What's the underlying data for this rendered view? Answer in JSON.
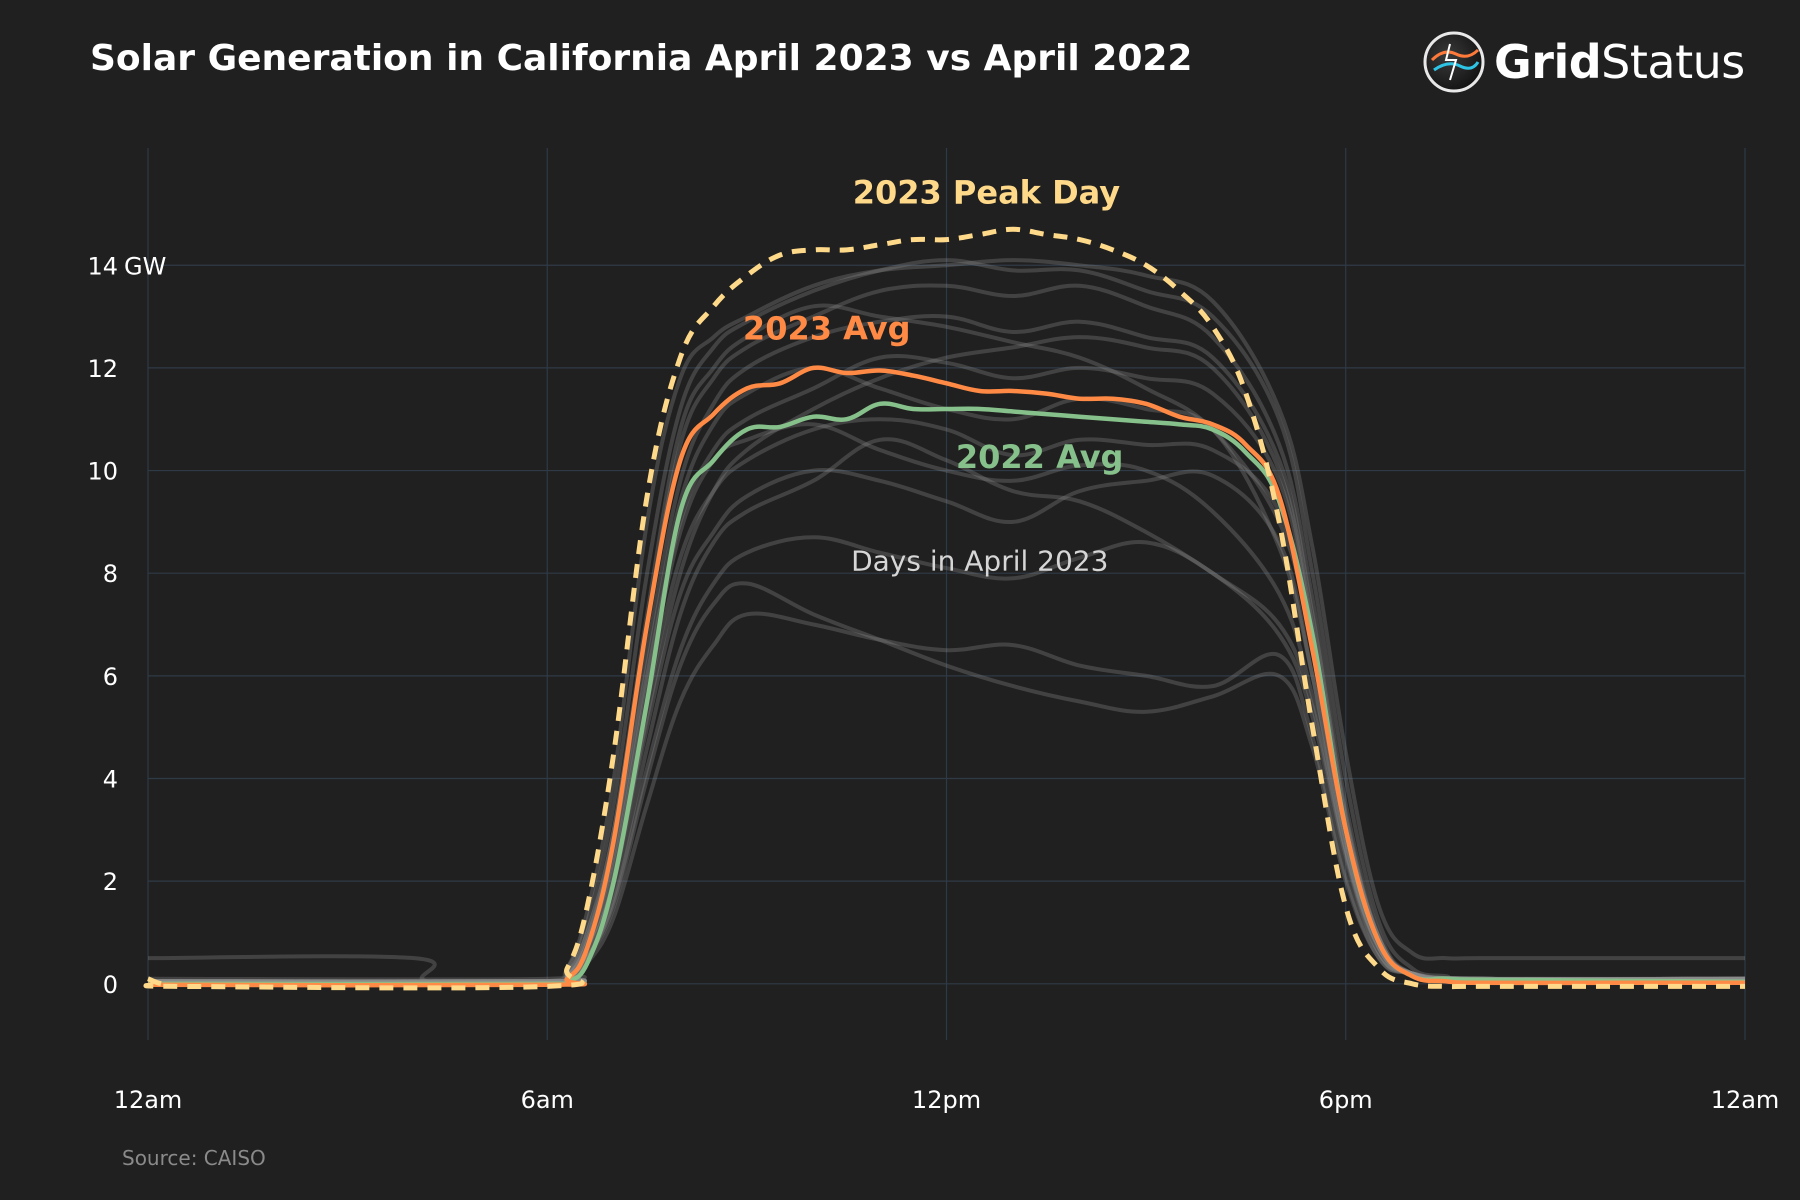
{
  "title": "Solar Generation in California April 2023 vs April 2022",
  "brand": {
    "name_bold": "Grid",
    "name_regular": "Status"
  },
  "source": "Source: CAISO",
  "colors": {
    "background": "#202020",
    "grid": "#2f3a47",
    "days": "#8c8c8c",
    "avg_2023": "#ff8a45",
    "avg_2022": "#86c08a",
    "peak_2023": "#ffd98a",
    "axis_text": "#ffffff"
  },
  "chart_data": {
    "type": "line",
    "title": "Solar Generation in California April 2023 vs April 2022",
    "xlabel": "",
    "ylabel": "GW",
    "x_unit": "hours since midnight",
    "xlim": [
      0,
      24
    ],
    "ylim": [
      -0.9,
      15.7
    ],
    "x_ticks": [
      {
        "value": 0,
        "label": "12am"
      },
      {
        "value": 6,
        "label": "6am"
      },
      {
        "value": 12,
        "label": "12pm"
      },
      {
        "value": 18,
        "label": "6pm"
      },
      {
        "value": 24,
        "label": "12am"
      }
    ],
    "y_ticks": [
      {
        "value": 0,
        "label": "0"
      },
      {
        "value": 2,
        "label": "2"
      },
      {
        "value": 4,
        "label": "4"
      },
      {
        "value": 6,
        "label": "6"
      },
      {
        "value": 8,
        "label": "8"
      },
      {
        "value": 10,
        "label": "10"
      },
      {
        "value": 12,
        "label": "12"
      },
      {
        "value": 14,
        "label": "14"
      }
    ],
    "y_unit_label": "GW",
    "grid": true,
    "series": [
      {
        "name": "2023 Peak Day",
        "style": "dashed",
        "x": [
          0,
          0.2,
          0.5,
          6.0,
          6.3,
          6.6,
          7.0,
          7.5,
          8.0,
          8.5,
          9.0,
          9.5,
          10.0,
          10.5,
          11.0,
          11.5,
          12.0,
          12.5,
          13.0,
          13.5,
          14.0,
          14.5,
          15.0,
          15.5,
          16.0,
          16.5,
          17.0,
          17.5,
          18.0,
          18.5,
          19.0,
          19.5,
          20.0,
          22.0,
          24.0
        ],
        "y": [
          0.1,
          0.0,
          -0.05,
          -0.05,
          0.3,
          1.5,
          4.5,
          9.5,
          12.2,
          13.2,
          13.8,
          14.2,
          14.3,
          14.3,
          14.4,
          14.5,
          14.5,
          14.6,
          14.7,
          14.6,
          14.5,
          14.3,
          14.0,
          13.5,
          12.8,
          11.5,
          9.0,
          5.0,
          1.5,
          0.3,
          0.0,
          -0.05,
          -0.05,
          -0.05,
          -0.05
        ]
      },
      {
        "name": "2023 Avg",
        "style": "solid",
        "x": [
          0,
          6.0,
          6.3,
          6.6,
          7.0,
          7.5,
          8.0,
          8.5,
          9.0,
          9.5,
          10.0,
          10.5,
          11.0,
          11.5,
          12.0,
          12.5,
          13.0,
          13.5,
          14.0,
          14.5,
          15.0,
          15.5,
          16.0,
          16.5,
          17.0,
          17.5,
          18.0,
          18.5,
          19.0,
          19.5,
          20.0,
          22.0,
          24.0
        ],
        "y": [
          -0.02,
          -0.02,
          0.1,
          0.7,
          2.8,
          7.0,
          10.2,
          11.1,
          11.6,
          11.7,
          12.0,
          11.9,
          11.95,
          11.85,
          11.7,
          11.55,
          11.55,
          11.5,
          11.4,
          11.4,
          11.3,
          11.05,
          10.9,
          10.5,
          9.5,
          6.5,
          3.0,
          0.8,
          0.15,
          0.05,
          0.02,
          0.02,
          0.02
        ]
      },
      {
        "name": "2022 Avg",
        "style": "solid",
        "x": [
          0,
          6.0,
          6.3,
          6.6,
          7.0,
          7.5,
          8.0,
          8.5,
          9.0,
          9.5,
          10.0,
          10.5,
          11.0,
          11.5,
          12.0,
          12.5,
          13.0,
          13.5,
          14.0,
          14.5,
          15.0,
          15.5,
          16.0,
          16.5,
          17.0,
          17.5,
          18.0,
          18.5,
          19.0,
          19.5,
          20.0,
          22.0,
          24.0
        ],
        "y": [
          0.0,
          0.0,
          0.05,
          0.4,
          2.0,
          5.5,
          9.2,
          10.2,
          10.8,
          10.85,
          11.05,
          11.0,
          11.3,
          11.2,
          11.2,
          11.2,
          11.15,
          11.1,
          11.05,
          11.0,
          10.95,
          10.9,
          10.8,
          10.35,
          9.4,
          6.8,
          3.0,
          0.8,
          0.15,
          0.1,
          0.08,
          0.06,
          0.04
        ]
      }
    ],
    "background_series_name": "Days in April 2023",
    "background_series": [
      {
        "x": [
          0,
          4.0,
          4.2,
          6.0,
          6.3,
          6.6,
          7.0,
          7.5,
          8.0,
          8.5,
          9.0,
          10.0,
          11.0,
          12.0,
          13.0,
          14.0,
          15.0,
          16.0,
          17.0,
          17.5,
          18.0,
          18.5,
          19.0,
          19.5,
          20.0,
          22.0,
          24.0
        ],
        "y": [
          0.5,
          0.5,
          0.05,
          0.05,
          0.3,
          1.4,
          4.0,
          9.0,
          11.8,
          12.6,
          13.0,
          13.6,
          13.9,
          14.0,
          14.1,
          14.0,
          13.8,
          13.3,
          11.2,
          8.5,
          4.5,
          1.5,
          0.6,
          0.5,
          0.5,
          0.5,
          0.5
        ]
      },
      {
        "x": [
          0,
          6.0,
          6.3,
          6.6,
          7.0,
          7.5,
          8.0,
          8.5,
          9.0,
          10.0,
          11.0,
          12.0,
          13.0,
          14.0,
          15.0,
          16.0,
          17.0,
          17.5,
          18.0,
          18.5,
          19.0,
          19.5,
          20.0,
          24.0
        ],
        "y": [
          0.1,
          0.1,
          0.3,
          1.2,
          3.5,
          8.0,
          11.2,
          12.4,
          12.9,
          13.5,
          13.9,
          14.1,
          13.9,
          13.9,
          13.5,
          13.0,
          11.0,
          8.0,
          4.0,
          1.2,
          0.3,
          0.15,
          0.1,
          0.1
        ]
      },
      {
        "x": [
          0,
          6.0,
          6.3,
          6.6,
          7.0,
          7.5,
          8.0,
          8.5,
          9.0,
          10.0,
          11.0,
          12.0,
          13.0,
          14.0,
          15.0,
          16.0,
          17.0,
          17.5,
          18.0,
          18.5,
          19.0,
          20.0,
          24.0
        ],
        "y": [
          0.05,
          0.05,
          0.2,
          1.0,
          3.0,
          7.0,
          10.5,
          11.8,
          12.4,
          13.0,
          13.5,
          13.6,
          13.4,
          13.6,
          13.2,
          12.6,
          10.5,
          7.5,
          3.5,
          1.0,
          0.2,
          0.1,
          0.1
        ]
      },
      {
        "x": [
          0,
          6.0,
          6.3,
          6.6,
          7.0,
          7.5,
          8.0,
          8.5,
          9.0,
          10.0,
          11.0,
          12.0,
          13.0,
          14.0,
          15.0,
          16.0,
          17.0,
          17.5,
          18.0,
          18.5,
          19.0,
          20.0,
          24.0
        ],
        "y": [
          0.05,
          0.05,
          0.2,
          0.9,
          2.8,
          6.5,
          9.8,
          11.3,
          12.0,
          12.6,
          12.9,
          13.0,
          12.7,
          12.9,
          12.6,
          12.2,
          10.2,
          7.2,
          3.3,
          0.9,
          0.2,
          0.1,
          0.1
        ]
      },
      {
        "x": [
          0,
          6.0,
          6.3,
          6.6,
          7.0,
          7.5,
          8.0,
          8.5,
          9.0,
          10.0,
          11.0,
          12.0,
          13.0,
          14.0,
          15.0,
          16.0,
          17.0,
          17.5,
          18.0,
          18.5,
          19.0,
          20.0,
          24.0
        ],
        "y": [
          0.05,
          0.05,
          0.15,
          0.8,
          2.5,
          6.0,
          9.0,
          10.4,
          11.0,
          11.6,
          12.2,
          12.1,
          11.8,
          12.0,
          11.8,
          11.5,
          9.8,
          6.8,
          3.0,
          0.8,
          0.2,
          0.1,
          0.1
        ]
      },
      {
        "x": [
          0,
          6.0,
          6.3,
          6.6,
          7.0,
          7.5,
          8.0,
          8.5,
          9.0,
          10.0,
          11.0,
          12.0,
          13.0,
          14.0,
          15.0,
          16.0,
          17.0,
          17.5,
          18.0,
          18.5,
          19.0,
          20.0,
          24.0
        ],
        "y": [
          0.05,
          0.05,
          0.15,
          0.7,
          2.2,
          5.5,
          8.3,
          9.6,
          10.2,
          10.8,
          11.0,
          10.8,
          10.3,
          10.6,
          10.5,
          10.4,
          9.2,
          6.5,
          2.8,
          0.7,
          0.2,
          0.1,
          0.1
        ]
      },
      {
        "x": [
          0,
          6.0,
          6.3,
          6.6,
          7.0,
          7.5,
          8.0,
          8.5,
          9.0,
          10.0,
          11.0,
          12.0,
          13.0,
          14.0,
          15.0,
          16.0,
          17.0,
          17.5,
          18.0,
          18.5,
          19.0,
          20.0,
          24.0
        ],
        "y": [
          0.05,
          0.05,
          0.1,
          0.6,
          2.0,
          5.0,
          7.6,
          8.8,
          9.5,
          10.0,
          9.8,
          9.4,
          9.0,
          9.6,
          9.8,
          9.9,
          8.6,
          6.0,
          2.6,
          0.7,
          0.2,
          0.1,
          0.1
        ]
      },
      {
        "x": [
          0,
          6.0,
          6.3,
          6.6,
          7.0,
          7.5,
          8.0,
          8.5,
          9.0,
          10.0,
          11.0,
          12.0,
          13.0,
          14.0,
          15.0,
          16.0,
          17.0,
          17.5,
          18.0,
          18.5,
          19.0,
          20.0,
          24.0
        ],
        "y": [
          0.05,
          0.05,
          0.1,
          0.5,
          1.6,
          4.2,
          6.5,
          7.8,
          8.4,
          8.7,
          8.4,
          8.1,
          7.9,
          8.3,
          8.6,
          8.0,
          6.8,
          5.2,
          2.4,
          0.6,
          0.2,
          0.1,
          0.1
        ]
      },
      {
        "x": [
          0,
          6.0,
          6.3,
          6.6,
          7.0,
          7.5,
          8.0,
          8.5,
          9.0,
          10.0,
          11.0,
          12.0,
          13.0,
          14.0,
          15.0,
          16.0,
          17.0,
          17.5,
          18.0,
          18.5,
          19.0,
          20.0,
          24.0
        ],
        "y": [
          0.05,
          0.05,
          0.1,
          0.4,
          1.3,
          3.5,
          5.5,
          6.6,
          7.2,
          7.0,
          6.7,
          6.5,
          6.6,
          6.2,
          6.0,
          5.8,
          6.4,
          4.8,
          2.1,
          0.5,
          0.2,
          0.1,
          0.1
        ]
      },
      {
        "x": [
          0,
          6.0,
          6.3,
          6.6,
          7.0,
          7.5,
          8.0,
          8.5,
          9.0,
          10.0,
          11.0,
          12.0,
          13.0,
          14.0,
          15.0,
          16.0,
          17.0,
          17.5,
          18.0,
          18.5,
          19.0,
          20.0,
          24.0
        ],
        "y": [
          0.05,
          0.05,
          0.1,
          0.5,
          1.5,
          4.0,
          6.2,
          7.4,
          7.8,
          7.2,
          6.7,
          6.2,
          5.8,
          5.5,
          5.3,
          5.6,
          6.0,
          4.6,
          2.0,
          0.5,
          0.2,
          0.1,
          0.1
        ]
      },
      {
        "x": [
          0,
          6.0,
          6.3,
          6.6,
          7.0,
          7.5,
          8.0,
          8.5,
          9.0,
          10.0,
          11.0,
          12.0,
          13.0,
          14.0,
          15.0,
          16.0,
          17.0,
          17.5,
          18.0,
          18.5,
          19.0,
          20.0,
          24.0
        ],
        "y": [
          0.05,
          0.05,
          0.15,
          0.8,
          2.6,
          6.2,
          9.4,
          10.9,
          11.5,
          12.0,
          11.6,
          11.2,
          11.0,
          11.4,
          11.2,
          10.8,
          8.5,
          6.0,
          2.8,
          0.8,
          0.2,
          0.1,
          0.1
        ]
      },
      {
        "x": [
          0,
          6.0,
          6.3,
          6.6,
          7.0,
          7.5,
          8.0,
          8.5,
          9.0,
          10.0,
          11.0,
          12.0,
          13.0,
          14.0,
          15.0,
          16.0,
          17.0,
          17.5,
          18.0,
          18.5,
          19.0,
          20.0,
          24.0
        ],
        "y": [
          0.05,
          0.05,
          0.15,
          0.7,
          2.3,
          5.8,
          8.8,
          10.2,
          10.6,
          10.9,
          10.4,
          10.0,
          9.8,
          10.1,
          10.0,
          9.2,
          7.6,
          5.6,
          2.6,
          0.7,
          0.2,
          0.1,
          0.1
        ]
      },
      {
        "x": [
          0,
          6.0,
          6.3,
          6.6,
          7.0,
          7.5,
          8.0,
          8.5,
          9.0,
          10.0,
          11.0,
          12.0,
          13.0,
          14.0,
          15.0,
          16.0,
          17.0,
          17.5,
          18.0,
          18.5,
          19.0,
          20.0,
          24.0
        ],
        "y": [
          0.05,
          0.05,
          0.2,
          1.0,
          3.0,
          7.2,
          10.8,
          12.0,
          12.6,
          13.2,
          13.0,
          12.8,
          12.5,
          12.2,
          11.6,
          10.8,
          9.0,
          6.6,
          3.1,
          0.9,
          0.2,
          0.1,
          0.1
        ]
      },
      {
        "x": [
          0,
          6.0,
          6.3,
          6.6,
          7.0,
          7.5,
          8.0,
          8.5,
          9.0,
          10.0,
          11.0,
          12.0,
          13.0,
          14.0,
          15.0,
          16.0,
          17.0,
          17.5,
          18.0,
          18.5,
          19.0,
          20.0,
          24.0
        ],
        "y": [
          0.05,
          0.05,
          0.15,
          0.6,
          2.0,
          5.2,
          8.0,
          9.6,
          10.4,
          11.2,
          11.8,
          12.2,
          12.4,
          12.6,
          12.4,
          12.0,
          10.0,
          7.0,
          3.2,
          0.9,
          0.2,
          0.1,
          0.1
        ]
      },
      {
        "x": [
          0,
          6.0,
          6.3,
          6.6,
          7.0,
          7.5,
          8.0,
          8.5,
          9.0,
          10.0,
          11.0,
          12.0,
          13.0,
          14.0,
          15.0,
          16.0,
          17.0,
          17.5,
          18.0,
          18.5,
          19.0,
          20.0,
          24.0
        ],
        "y": [
          0.05,
          0.05,
          0.1,
          0.5,
          1.7,
          4.6,
          7.2,
          8.6,
          9.2,
          9.8,
          10.6,
          10.2,
          9.6,
          9.4,
          8.8,
          8.0,
          7.0,
          5.4,
          2.5,
          0.6,
          0.2,
          0.1,
          0.1
        ]
      }
    ],
    "annotations": [
      {
        "text": "2023 Peak Day",
        "series": "2023 Peak Day"
      },
      {
        "text": "2023 Avg",
        "series": "2023 Avg"
      },
      {
        "text": "2022 Avg",
        "series": "2022 Avg"
      },
      {
        "text": "Days in April 2023",
        "series": "Days in April 2023"
      }
    ]
  }
}
